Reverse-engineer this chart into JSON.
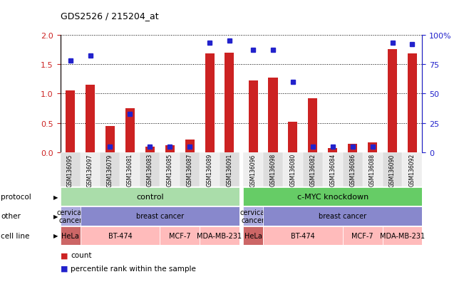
{
  "title": "GDS2526 / 215204_at",
  "samples": [
    "GSM136095",
    "GSM136097",
    "GSM136079",
    "GSM136081",
    "GSM136083",
    "GSM136085",
    "GSM136087",
    "GSM136089",
    "GSM136091",
    "GSM136096",
    "GSM136098",
    "GSM136080",
    "GSM136082",
    "GSM136084",
    "GSM136086",
    "GSM136088",
    "GSM136090",
    "GSM136092"
  ],
  "counts": [
    1.05,
    1.15,
    0.45,
    0.75,
    0.1,
    0.13,
    0.22,
    1.68,
    1.7,
    1.22,
    1.27,
    0.52,
    0.92,
    0.08,
    0.15,
    0.17,
    1.75,
    1.68
  ],
  "percentiles": [
    78,
    82,
    5,
    33,
    5,
    5,
    5,
    93,
    95,
    87,
    87,
    60,
    5,
    5,
    5,
    5,
    93,
    92
  ],
  "bar_color": "#cc2222",
  "dot_color": "#2222cc",
  "ylim_left": [
    0,
    2
  ],
  "ylim_right": [
    0,
    100
  ],
  "yticks_left": [
    0,
    0.5,
    1.0,
    1.5,
    2.0
  ],
  "yticks_right": [
    0,
    25,
    50,
    75,
    100
  ],
  "ytick_labels_right": [
    "0",
    "25",
    "50",
    "75",
    "100%"
  ],
  "protocol_color_control": "#aaddaa",
  "protocol_color_cmyc": "#66cc66",
  "other_color_cervical": "#aaaadd",
  "other_color_breast": "#8888cc",
  "cell_line_color_hela": "#cc6666",
  "cell_line_color_other": "#ffbbbb",
  "sample_bg_odd": "#dddddd",
  "sample_bg_even": "#eeeeee",
  "gap_color": "#ffffff",
  "legend_count": "count",
  "legend_percentile": "percentile rank within the sample"
}
